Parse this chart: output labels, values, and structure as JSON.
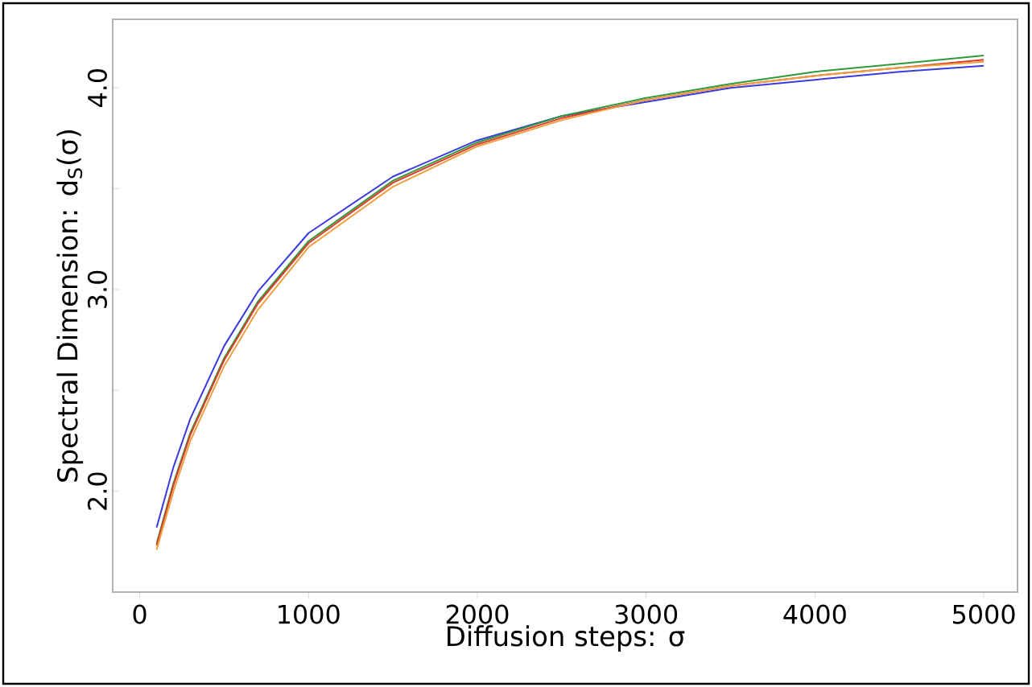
{
  "chart_data": {
    "type": "line",
    "xlabel": "Diffusion steps: σ",
    "ylabel": "Spectral Dimension: d$_{S}$(σ)",
    "x": [
      100,
      200,
      300,
      500,
      700,
      1000,
      1500,
      2000,
      2500,
      3000,
      3500,
      4000,
      4500,
      5000
    ],
    "series": [
      {
        "color": "#3a3ae0",
        "values": [
          1.82,
          2.12,
          2.36,
          2.72,
          2.99,
          3.28,
          3.56,
          3.74,
          3.86,
          3.93,
          4.0,
          4.04,
          4.08,
          4.11
        ]
      },
      {
        "color": "#2e9a3a",
        "values": [
          1.74,
          2.04,
          2.29,
          2.66,
          2.94,
          3.24,
          3.54,
          3.73,
          3.86,
          3.95,
          4.02,
          4.08,
          4.12,
          4.16
        ]
      },
      {
        "color": "#e03a2a",
        "values": [
          1.73,
          2.03,
          2.28,
          2.65,
          2.93,
          3.23,
          3.53,
          3.72,
          3.85,
          3.94,
          4.01,
          4.06,
          4.1,
          4.14
        ]
      },
      {
        "color": "#f0a040",
        "values": [
          1.71,
          2.0,
          2.25,
          2.62,
          2.9,
          3.21,
          3.51,
          3.71,
          3.84,
          3.94,
          4.01,
          4.06,
          4.1,
          4.13
        ]
      }
    ],
    "xlim": [
      -160,
      5200
    ],
    "ylim": [
      1.5,
      4.34
    ],
    "xticks": [
      0,
      1000,
      2000,
      3000,
      4000,
      5000
    ],
    "yticks": [
      {
        "value": 2.0,
        "label": "2.0"
      },
      {
        "value": 2.5,
        "label": null
      },
      {
        "value": 3.0,
        "label": "3.0"
      },
      {
        "value": 3.5,
        "label": null
      },
      {
        "value": 4.0,
        "label": "4.0"
      }
    ],
    "grid": false,
    "legend": false,
    "marker": "none",
    "line_style": "solid"
  }
}
